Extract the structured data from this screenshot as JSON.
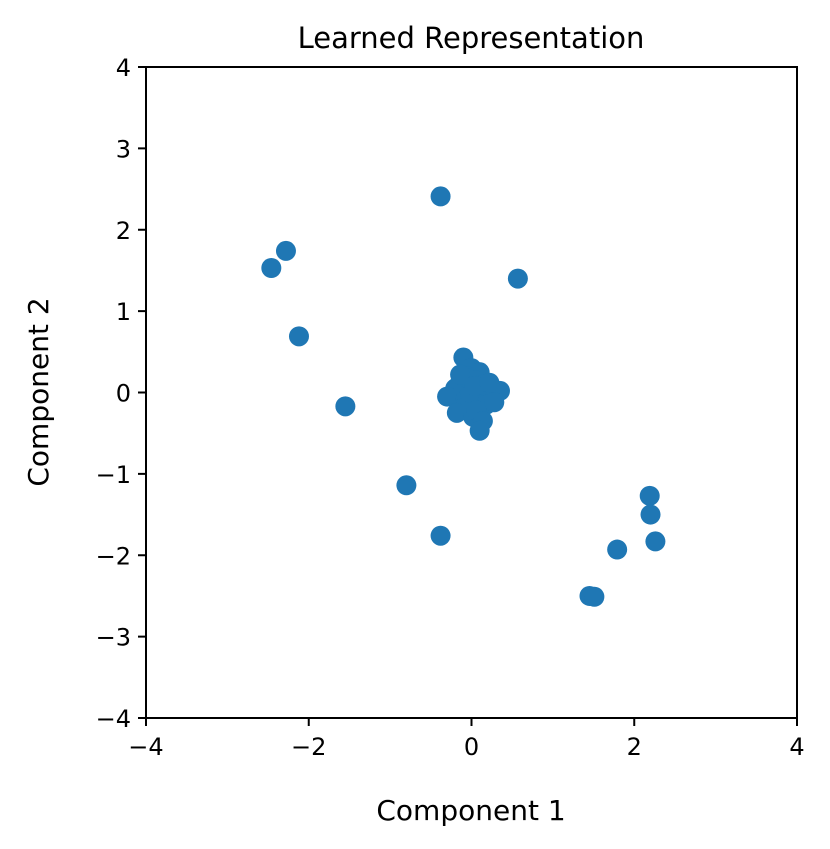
{
  "chart_data": {
    "type": "scatter",
    "title": "Learned Representation",
    "xlabel": "Component 1",
    "ylabel": "Component 2",
    "xlim": [
      -4,
      4
    ],
    "ylim": [
      -4,
      4
    ],
    "xticks": [
      "−4",
      "−2",
      "0",
      "2",
      "4"
    ],
    "yticks": [
      "−4",
      "−3",
      "−2",
      "−1",
      "0",
      "1",
      "2",
      "3",
      "4"
    ],
    "grid": false,
    "legend": "none",
    "color": "#1f77b4",
    "series": [
      {
        "x": [
          -0.38,
          0.57,
          -2.28,
          -2.46,
          -2.12,
          -1.55,
          -0.8,
          -0.38,
          2.19,
          2.2,
          2.26,
          1.79,
          1.45,
          1.51,
          -0.1,
          0.0,
          0.1,
          -0.05,
          0.05,
          0.15,
          -0.15,
          0.2,
          -0.2,
          0.25,
          0.35,
          -0.3,
          0.0,
          0.08,
          -0.08,
          0.12,
          -0.12,
          0.18,
          -0.18,
          0.02,
          -0.02,
          0.28,
          0.06,
          -0.06,
          0.14,
          -0.14,
          0.1,
          0.04,
          0.22
        ],
        "y": [
          2.41,
          1.4,
          1.74,
          1.53,
          0.69,
          -0.17,
          -1.14,
          -1.76,
          -1.27,
          -1.5,
          -1.83,
          -1.93,
          -2.5,
          -2.51,
          0.43,
          0.3,
          0.25,
          0.2,
          0.15,
          0.1,
          0.1,
          0.05,
          0.05,
          0.0,
          0.02,
          -0.05,
          -0.05,
          -0.1,
          -0.1,
          -0.15,
          -0.2,
          -0.15,
          -0.25,
          -0.3,
          0.0,
          -0.12,
          -0.22,
          0.18,
          -0.35,
          0.22,
          -0.47,
          0.08,
          0.12
        ]
      }
    ]
  }
}
